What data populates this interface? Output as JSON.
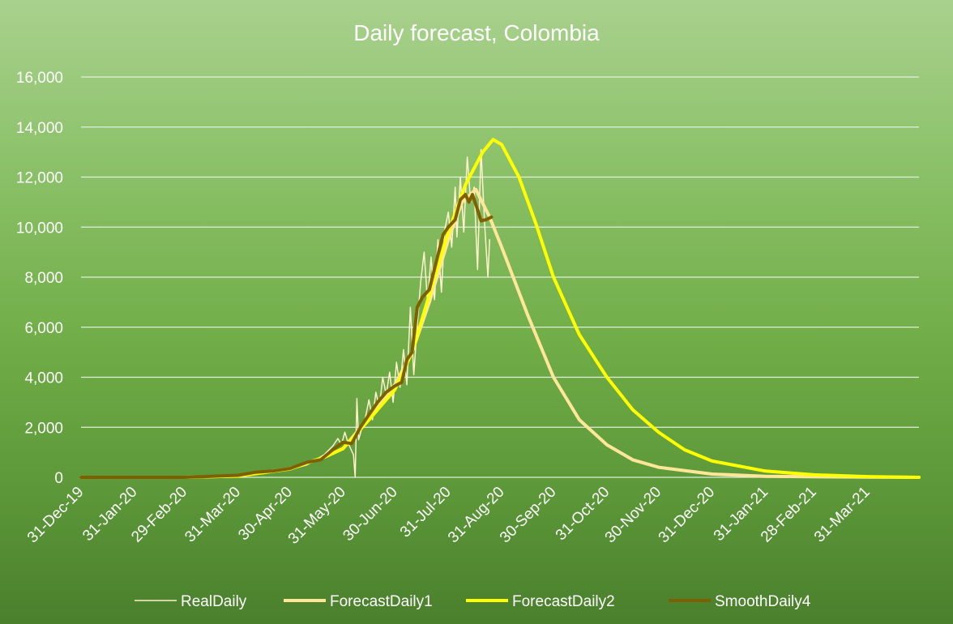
{
  "chart_data": {
    "type": "line",
    "title": "Daily forecast, Colombia",
    "xlabel": "",
    "ylabel": "",
    "x_axis": {
      "type": "date",
      "range": [
        "2019-12-31",
        "2021-04-30"
      ],
      "tick_dates": [
        "2019-12-31",
        "2020-01-31",
        "2020-02-29",
        "2020-03-31",
        "2020-04-30",
        "2020-05-31",
        "2020-06-30",
        "2020-07-31",
        "2020-08-31",
        "2020-09-30",
        "2020-10-31",
        "2020-11-30",
        "2020-12-31",
        "2021-01-31",
        "2021-02-28",
        "2021-03-31"
      ],
      "tick_labels": [
        "31-Dec-19",
        "31-Jan-20",
        "29-Feb-20",
        "31-Mar-20",
        "30-Apr-20",
        "31-May-20",
        "30-Jun-20",
        "31-Jul-20",
        "31-Aug-20",
        "30-Sep-20",
        "31-Oct-20",
        "30-Nov-20",
        "31-Dec-20",
        "31-Jan-21",
        "28-Feb-21",
        "31-Mar-21"
      ]
    },
    "y_axis": {
      "range": [
        0,
        16000
      ],
      "ticks": [
        0,
        2000,
        4000,
        6000,
        8000,
        10000,
        12000,
        14000,
        16000
      ],
      "tick_labels": [
        "0",
        "2,000",
        "4,000",
        "6,000",
        "8,000",
        "10,000",
        "12,000",
        "14,000",
        "16,000"
      ]
    },
    "grid": true,
    "legend_position": "bottom",
    "series": [
      {
        "name": "RealDaily",
        "color": "#fff2cc",
        "width": 1.5,
        "points": [
          [
            "2019-12-31",
            0
          ],
          [
            "2020-02-29",
            0
          ],
          [
            "2020-03-31",
            80
          ],
          [
            "2020-04-15",
            150
          ],
          [
            "2020-04-30",
            300
          ],
          [
            "2020-05-10",
            500
          ],
          [
            "2020-05-20",
            900
          ],
          [
            "2020-05-25",
            1250
          ],
          [
            "2020-05-28",
            1550
          ],
          [
            "2020-05-30",
            1300
          ],
          [
            "2020-06-01",
            1800
          ],
          [
            "2020-06-03",
            1350
          ],
          [
            "2020-06-06",
            900
          ],
          [
            "2020-06-07",
            0
          ],
          [
            "2020-06-08",
            3150
          ],
          [
            "2020-06-09",
            1500
          ],
          [
            "2020-06-11",
            2000
          ],
          [
            "2020-06-13",
            2400
          ],
          [
            "2020-06-15",
            3100
          ],
          [
            "2020-06-17",
            2300
          ],
          [
            "2020-06-19",
            3400
          ],
          [
            "2020-06-21",
            2800
          ],
          [
            "2020-06-23",
            4000
          ],
          [
            "2020-06-25",
            3300
          ],
          [
            "2020-06-27",
            4200
          ],
          [
            "2020-06-29",
            3000
          ],
          [
            "2020-07-01",
            4600
          ],
          [
            "2020-07-03",
            3600
          ],
          [
            "2020-07-05",
            5100
          ],
          [
            "2020-07-07",
            3700
          ],
          [
            "2020-07-09",
            6800
          ],
          [
            "2020-07-11",
            4100
          ],
          [
            "2020-07-13",
            6100
          ],
          [
            "2020-07-15",
            7800
          ],
          [
            "2020-07-17",
            9000
          ],
          [
            "2020-07-19",
            7000
          ],
          [
            "2020-07-21",
            8800
          ],
          [
            "2020-07-23",
            7100
          ],
          [
            "2020-07-25",
            9500
          ],
          [
            "2020-07-27",
            7400
          ],
          [
            "2020-07-29",
            9900
          ],
          [
            "2020-07-31",
            10600
          ],
          [
            "2020-08-02",
            9200
          ],
          [
            "2020-08-04",
            11600
          ],
          [
            "2020-08-05",
            9600
          ],
          [
            "2020-08-07",
            12000
          ],
          [
            "2020-08-09",
            9800
          ],
          [
            "2020-08-11",
            12800
          ],
          [
            "2020-08-13",
            11000
          ],
          [
            "2020-08-15",
            11600
          ],
          [
            "2020-08-17",
            8300
          ],
          [
            "2020-08-19",
            13100
          ],
          [
            "2020-08-21",
            10200
          ],
          [
            "2020-08-23",
            8000
          ],
          [
            "2020-08-24",
            9500
          ]
        ]
      },
      {
        "name": "ForecastDaily1",
        "color": "#ffe699",
        "width": 4,
        "points": [
          [
            "2019-12-31",
            0
          ],
          [
            "2020-02-29",
            0
          ],
          [
            "2020-03-31",
            50
          ],
          [
            "2020-04-30",
            350
          ],
          [
            "2020-05-20",
            800
          ],
          [
            "2020-05-31",
            1150
          ],
          [
            "2020-06-15",
            2400
          ],
          [
            "2020-06-30",
            3700
          ],
          [
            "2020-07-10",
            5000
          ],
          [
            "2020-07-20",
            7000
          ],
          [
            "2020-07-31",
            9500
          ],
          [
            "2020-08-08",
            11000
          ],
          [
            "2020-08-16",
            11500
          ],
          [
            "2020-08-24",
            10400
          ],
          [
            "2020-08-31",
            9200
          ],
          [
            "2020-09-15",
            6500
          ],
          [
            "2020-09-30",
            4000
          ],
          [
            "2020-10-15",
            2300
          ],
          [
            "2020-10-31",
            1300
          ],
          [
            "2020-11-15",
            700
          ],
          [
            "2020-11-30",
            400
          ],
          [
            "2020-12-31",
            130
          ],
          [
            "2021-01-31",
            40
          ],
          [
            "2021-03-31",
            5
          ],
          [
            "2021-04-30",
            0
          ]
        ]
      },
      {
        "name": "ForecastDaily2",
        "color": "#ffff00",
        "width": 4,
        "points": [
          [
            "2019-12-31",
            0
          ],
          [
            "2020-02-29",
            0
          ],
          [
            "2020-03-31",
            50
          ],
          [
            "2020-04-30",
            330
          ],
          [
            "2020-05-20",
            800
          ],
          [
            "2020-05-31",
            1150
          ],
          [
            "2020-06-15",
            2300
          ],
          [
            "2020-06-30",
            3500
          ],
          [
            "2020-07-10",
            5000
          ],
          [
            "2020-07-20",
            7300
          ],
          [
            "2020-07-31",
            9800
          ],
          [
            "2020-08-10",
            11700
          ],
          [
            "2020-08-20",
            13000
          ],
          [
            "2020-08-26",
            13500
          ],
          [
            "2020-08-31",
            13300
          ],
          [
            "2020-09-10",
            12000
          ],
          [
            "2020-09-20",
            10100
          ],
          [
            "2020-09-30",
            8000
          ],
          [
            "2020-10-15",
            5700
          ],
          [
            "2020-10-31",
            4000
          ],
          [
            "2020-11-15",
            2700
          ],
          [
            "2020-11-30",
            1800
          ],
          [
            "2020-12-15",
            1100
          ],
          [
            "2020-12-31",
            650
          ],
          [
            "2021-01-31",
            250
          ],
          [
            "2021-02-28",
            100
          ],
          [
            "2021-03-31",
            30
          ],
          [
            "2021-04-30",
            0
          ]
        ]
      },
      {
        "name": "SmoothDaily4",
        "color": "#7f6000",
        "width": 4,
        "points": [
          [
            "2019-12-31",
            0
          ],
          [
            "2020-02-29",
            0
          ],
          [
            "2020-03-31",
            80
          ],
          [
            "2020-04-10",
            200
          ],
          [
            "2020-04-20",
            250
          ],
          [
            "2020-04-30",
            350
          ],
          [
            "2020-05-10",
            600
          ],
          [
            "2020-05-18",
            700
          ],
          [
            "2020-05-25",
            1100
          ],
          [
            "2020-05-31",
            1400
          ],
          [
            "2020-06-05",
            1350
          ],
          [
            "2020-06-10",
            2000
          ],
          [
            "2020-06-15",
            2500
          ],
          [
            "2020-06-20",
            3000
          ],
          [
            "2020-06-25",
            3400
          ],
          [
            "2020-06-30",
            3650
          ],
          [
            "2020-07-04",
            3800
          ],
          [
            "2020-07-07",
            4700
          ],
          [
            "2020-07-10",
            5000
          ],
          [
            "2020-07-13",
            6800
          ],
          [
            "2020-07-16",
            7200
          ],
          [
            "2020-07-20",
            7500
          ],
          [
            "2020-07-24",
            8600
          ],
          [
            "2020-07-28",
            9700
          ],
          [
            "2020-07-31",
            10000
          ],
          [
            "2020-08-04",
            10300
          ],
          [
            "2020-08-07",
            11100
          ],
          [
            "2020-08-10",
            11300
          ],
          [
            "2020-08-12",
            11000
          ],
          [
            "2020-08-14",
            11300
          ],
          [
            "2020-08-17",
            10700
          ],
          [
            "2020-08-19",
            10250
          ],
          [
            "2020-08-22",
            10300
          ],
          [
            "2020-08-25",
            10400
          ]
        ]
      }
    ]
  }
}
